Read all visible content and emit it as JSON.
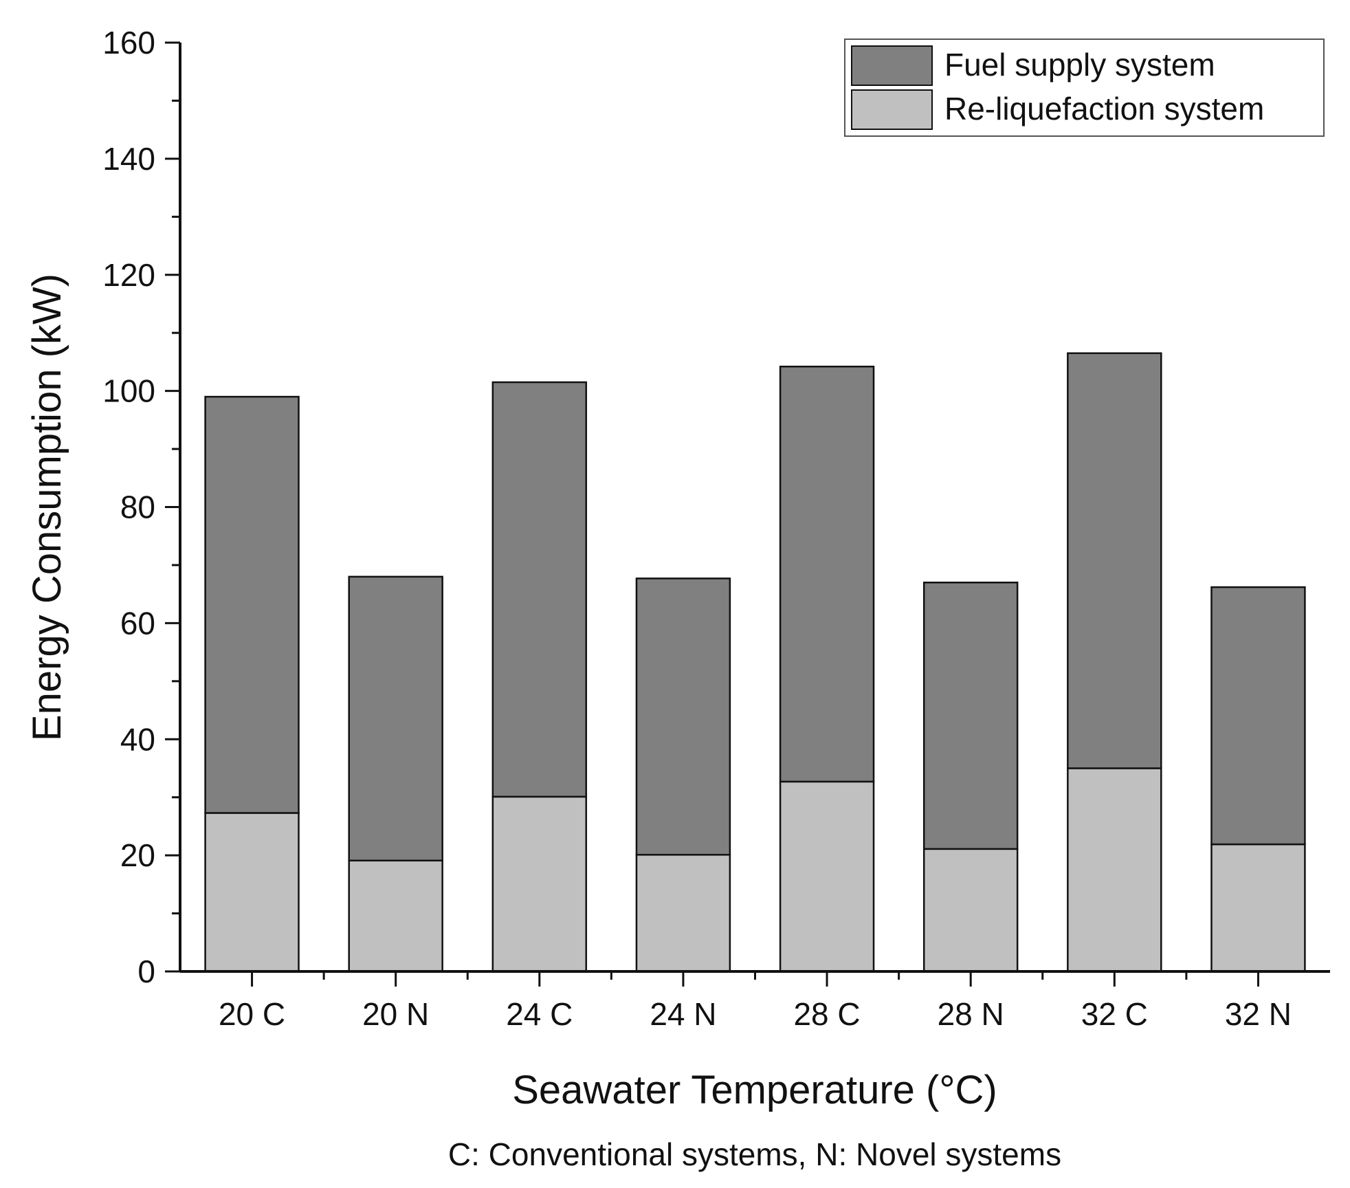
{
  "chart_data": {
    "type": "bar",
    "stacked": true,
    "categories": [
      "20 C",
      "20 N",
      "24 C",
      "24 N",
      "28 C",
      "28 N",
      "32 C",
      "32 N"
    ],
    "series": [
      {
        "name": "Re-liquefaction system",
        "color": "#c0c0c0",
        "values": [
          27.3,
          19.1,
          30.1,
          20.1,
          32.7,
          21.1,
          35.0,
          21.9
        ]
      },
      {
        "name": "Fuel supply system",
        "color": "#808080",
        "values": [
          71.7,
          48.9,
          71.4,
          47.6,
          71.5,
          45.9,
          71.5,
          44.3
        ]
      }
    ],
    "legend": [
      {
        "label": "Fuel supply system",
        "color": "#808080"
      },
      {
        "label": "Re-liquefaction system",
        "color": "#c0c0c0"
      }
    ],
    "legend_position": "top-right",
    "title": "",
    "xlabel": "Seawater Temperature (°C)",
    "ylabel": "Energy Consumption (kW)",
    "ylim": [
      0,
      160
    ],
    "yticks": [
      0,
      20,
      40,
      60,
      80,
      100,
      120,
      140,
      160
    ],
    "yticklabels": [
      "0",
      "20",
      "40",
      "60",
      "80",
      "100",
      "120",
      "140",
      "160"
    ],
    "note": "C: Conventional systems, N: Novel systems",
    "grid": false
  }
}
